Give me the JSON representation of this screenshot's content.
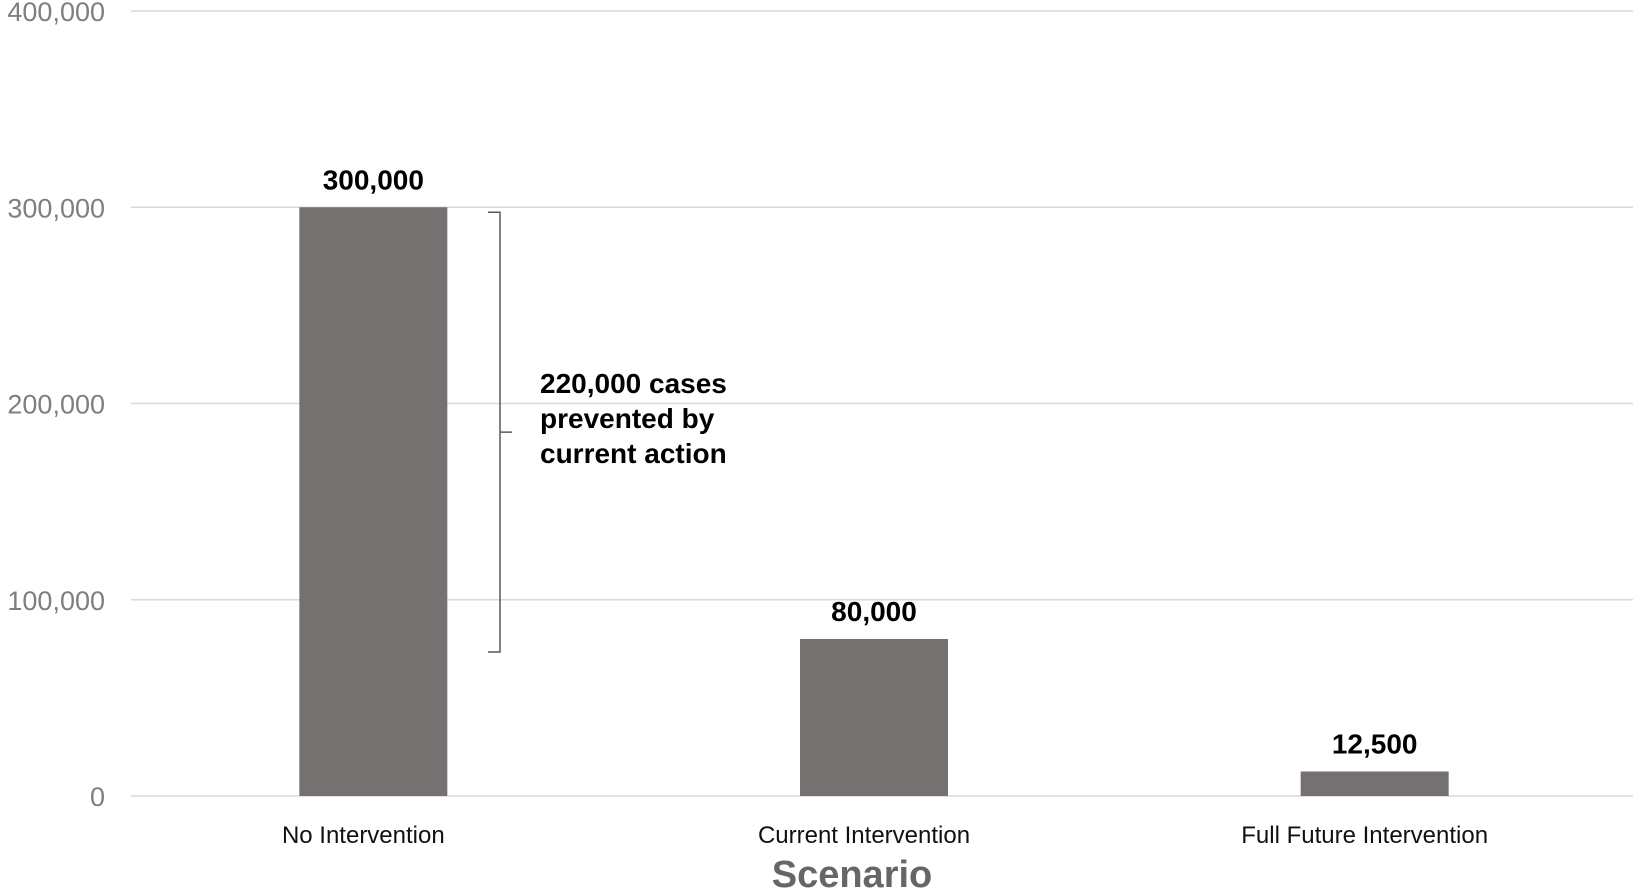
{
  "chart_data": {
    "type": "bar",
    "categories": [
      "No Intervention",
      "Current Intervention",
      "Full Future Intervention"
    ],
    "values": [
      300000,
      80000,
      12500
    ],
    "data_labels": [
      "300,000",
      "80,000",
      "12,500"
    ],
    "xlabel": "Scenario",
    "ylabel": "",
    "ylim": [
      0,
      400000
    ],
    "yticks": [
      0,
      100000,
      200000,
      300000,
      400000
    ],
    "ytick_labels": [
      "0",
      "100,000",
      "200,000",
      "300,000",
      "400,000"
    ],
    "grid": true,
    "bar_color": "#767171",
    "annotation": {
      "lines": [
        "220,000 cases",
        "prevented by",
        "current action"
      ],
      "bracket_from": 300000,
      "bracket_to": 80000
    }
  },
  "colors": {
    "bar": "#767171",
    "gridline": "#d9d9d9",
    "tick_text": "#7f7f7f",
    "axis_title": "#666666",
    "bracket": "#595959"
  }
}
